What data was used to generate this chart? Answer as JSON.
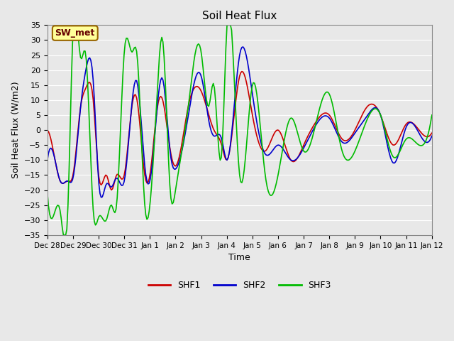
{
  "title": "Soil Heat Flux",
  "xlabel": "Time",
  "ylabel": "Soil Heat Flux (W/m2)",
  "ylim": [
    -35,
    35
  ],
  "yticks": [
    -35,
    -30,
    -25,
    -20,
    -15,
    -10,
    -5,
    0,
    5,
    10,
    15,
    20,
    25,
    30,
    35
  ],
  "xtick_labels": [
    "Dec 28",
    "Dec 29",
    "Dec 30",
    "Dec 31",
    "Jan 1",
    "Jan 2",
    "Jan 3",
    "Jan 4",
    "Jan 5",
    "Jan 6",
    "Jan 7",
    "Jan 8",
    "Jan 9",
    "Jan 10",
    "Jan 11",
    "Jan 12"
  ],
  "background_color": "#e8e8e8",
  "plot_bg_color": "#e8e8e8",
  "grid_color": "#ffffff",
  "shf1_color": "#cc0000",
  "shf2_color": "#0000cc",
  "shf3_color": "#00bb00",
  "legend_label": "SW_met",
  "legend_box_color": "#ffff99",
  "legend_box_edge": "#996600",
  "series_labels": [
    "SHF1",
    "SHF2",
    "SHF3"
  ],
  "n_points": 337
}
